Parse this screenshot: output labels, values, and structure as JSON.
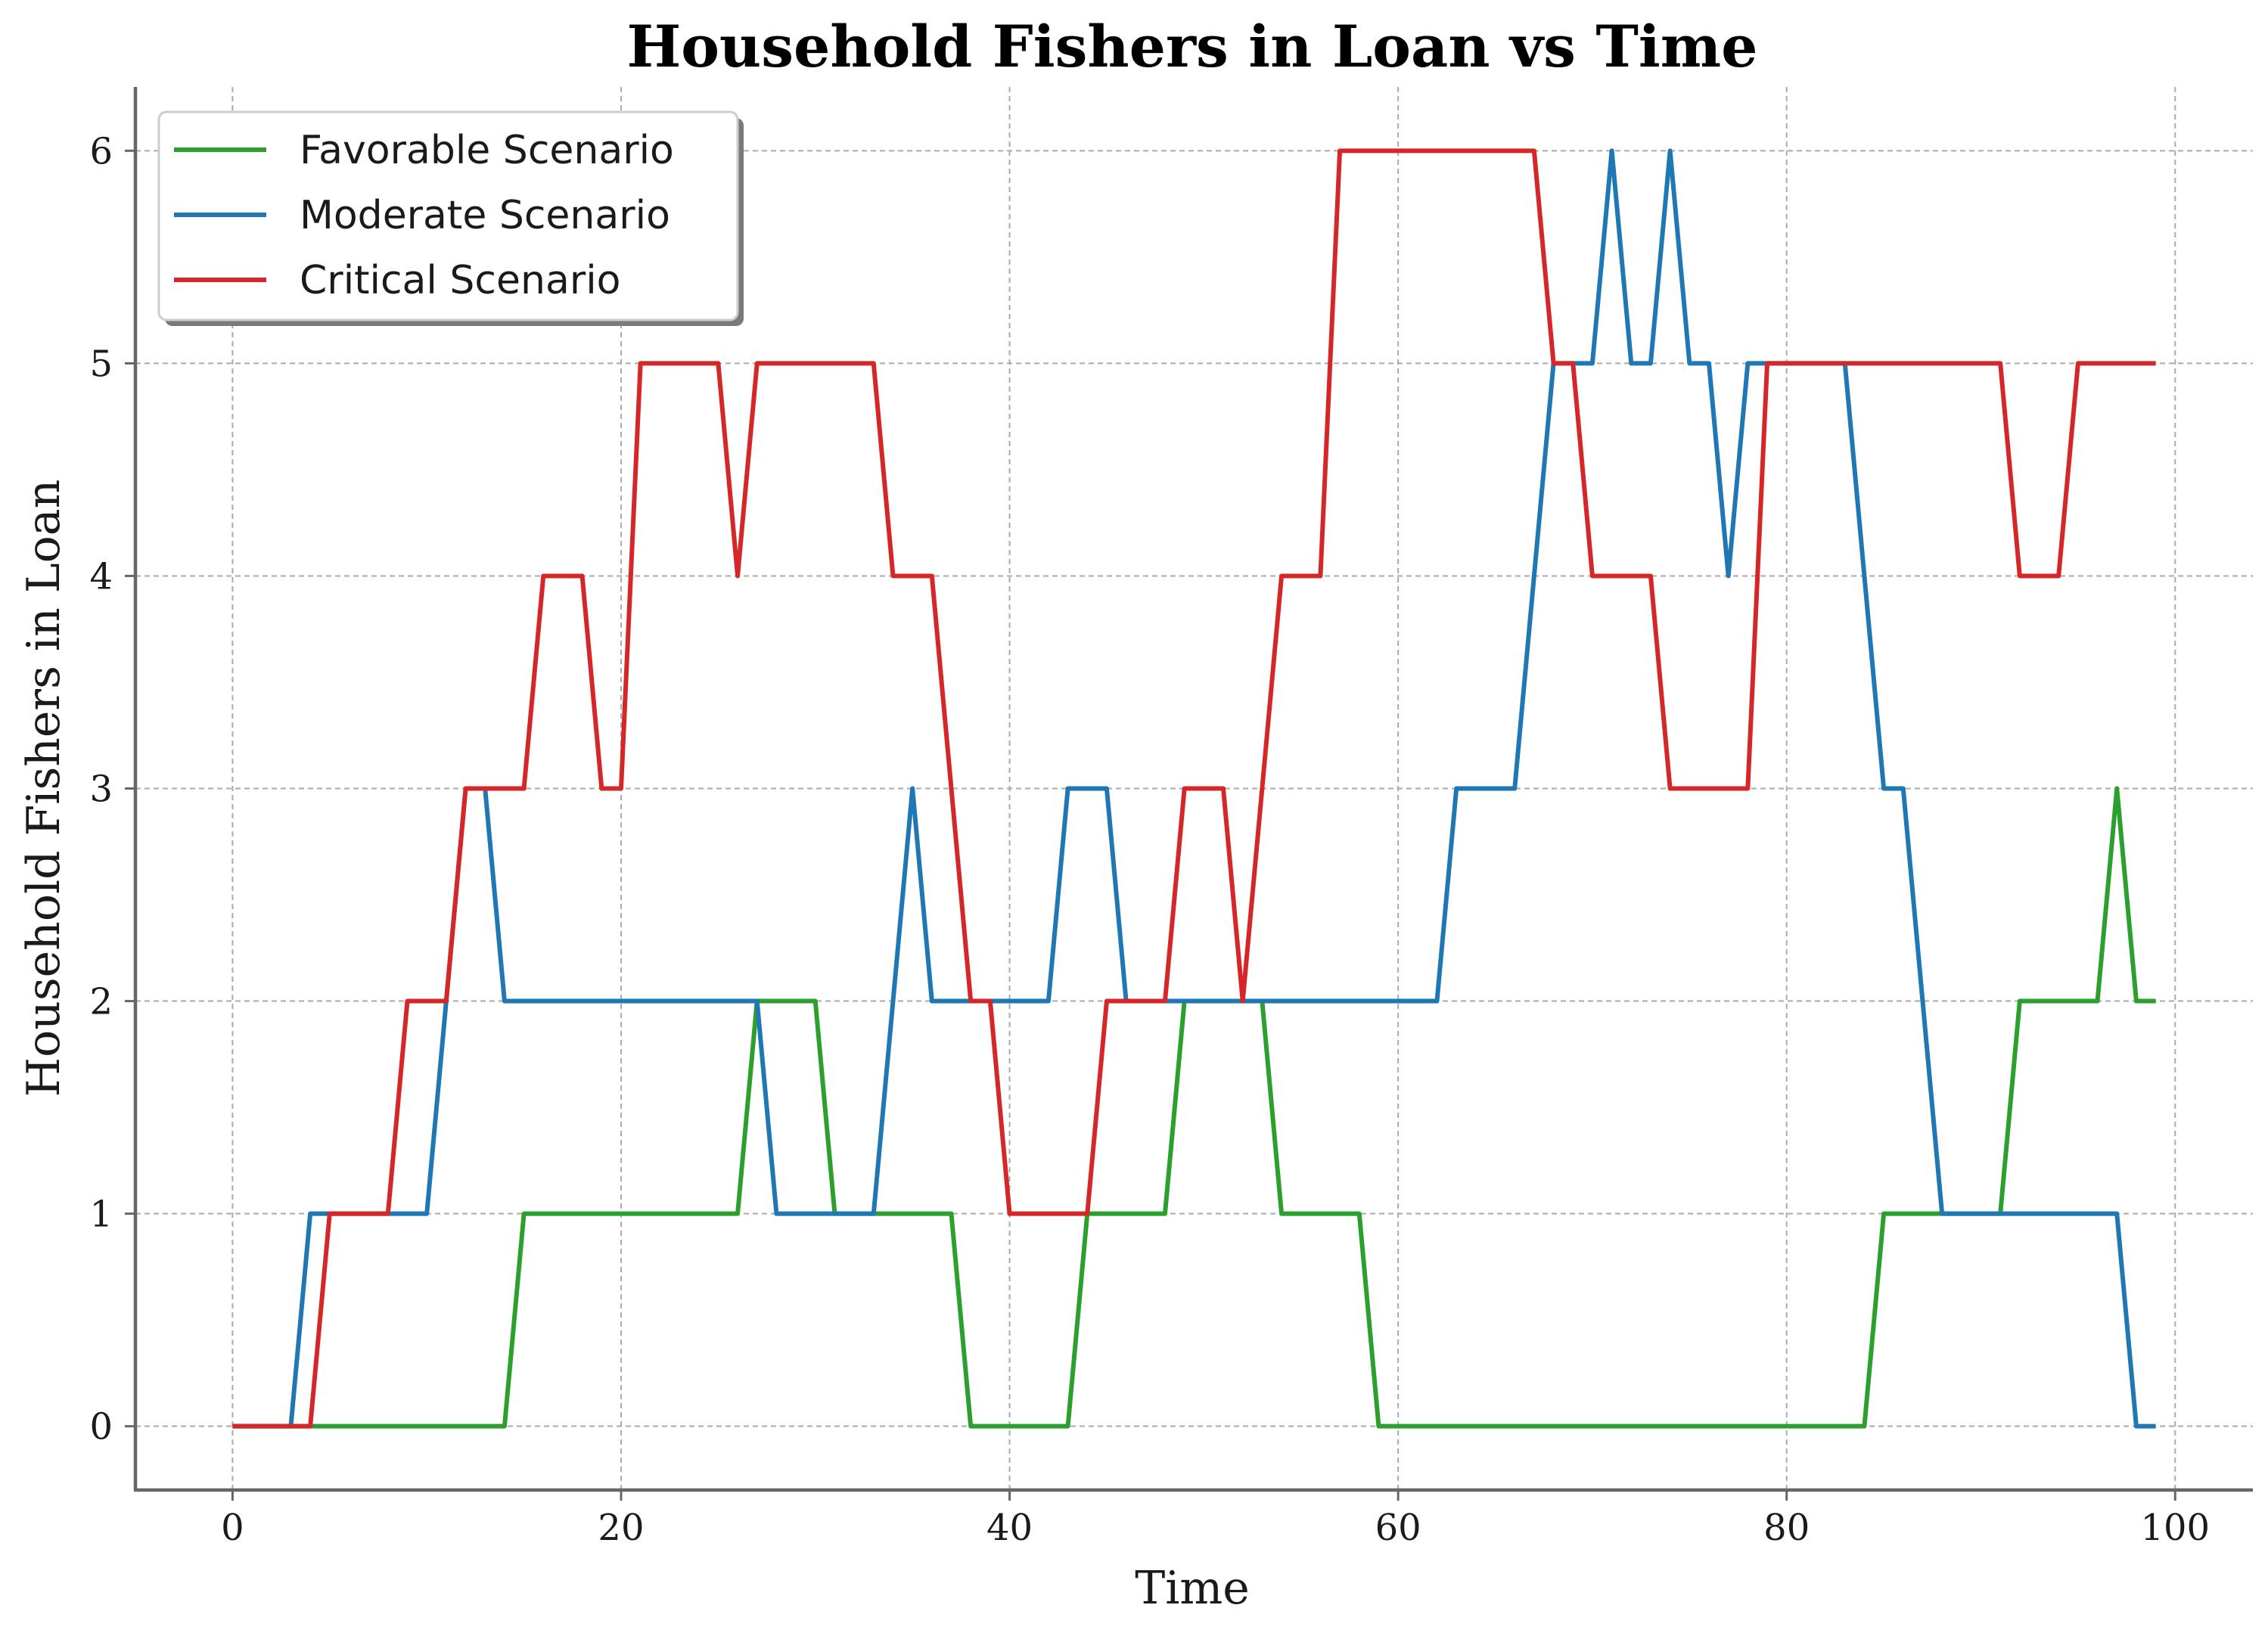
{
  "chart_data": {
    "type": "line",
    "title": "Household Fishers in Loan vs Time",
    "xlabel": "Time",
    "ylabel": "Household Fishers in Loan",
    "xlim": [
      -5,
      104
    ],
    "ylim": [
      -0.3,
      6.3
    ],
    "xticks": [
      0,
      20,
      40,
      60,
      80,
      100
    ],
    "yticks": [
      0,
      1,
      2,
      3,
      4,
      5,
      6
    ],
    "grid": true,
    "legend_position": "top-left",
    "x": [
      0,
      1,
      2,
      3,
      4,
      5,
      6,
      7,
      8,
      9,
      10,
      11,
      12,
      13,
      14,
      15,
      16,
      17,
      18,
      19,
      20,
      21,
      22,
      23,
      24,
      25,
      26,
      27,
      28,
      29,
      30,
      31,
      32,
      33,
      34,
      35,
      36,
      37,
      38,
      39,
      40,
      41,
      42,
      43,
      44,
      45,
      46,
      47,
      48,
      49,
      50,
      51,
      52,
      53,
      54,
      55,
      56,
      57,
      58,
      59,
      60,
      61,
      62,
      63,
      64,
      65,
      66,
      67,
      68,
      69,
      70,
      71,
      72,
      73,
      74,
      75,
      76,
      77,
      78,
      79,
      80,
      81,
      82,
      83,
      84,
      85,
      86,
      87,
      88,
      89,
      90,
      91,
      92,
      93,
      94,
      95,
      96,
      97,
      98,
      99
    ],
    "series": [
      {
        "name": "Favorable Scenario",
        "color": "#2ca02c",
        "values": [
          0,
          0,
          0,
          0,
          0,
          0,
          0,
          0,
          0,
          0,
          0,
          0,
          0,
          0,
          0,
          1,
          1,
          1,
          1,
          1,
          1,
          1,
          1,
          1,
          1,
          1,
          1,
          2,
          2,
          2,
          2,
          1,
          1,
          1,
          1,
          1,
          1,
          1,
          0,
          0,
          0,
          0,
          0,
          0,
          1,
          1,
          1,
          1,
          1,
          2,
          2,
          2,
          2,
          2,
          1,
          1,
          1,
          1,
          1,
          0,
          0,
          0,
          0,
          0,
          0,
          0,
          0,
          0,
          0,
          0,
          0,
          0,
          0,
          0,
          0,
          0,
          0,
          0,
          0,
          0,
          0,
          0,
          0,
          0,
          0,
          1,
          1,
          1,
          1,
          1,
          1,
          1,
          2,
          2,
          2,
          2,
          2,
          3,
          2,
          2
        ]
      },
      {
        "name": "Moderate Scenario",
        "color": "#1f77b4",
        "values": [
          0,
          0,
          0,
          0,
          1,
          1,
          1,
          1,
          1,
          1,
          1,
          2,
          3,
          3,
          2,
          2,
          2,
          2,
          2,
          2,
          2,
          2,
          2,
          2,
          2,
          2,
          2,
          2,
          1,
          1,
          1,
          1,
          1,
          1,
          2,
          3,
          2,
          2,
          2,
          2,
          2,
          2,
          2,
          3,
          3,
          3,
          2,
          2,
          2,
          2,
          2,
          2,
          2,
          2,
          2,
          2,
          2,
          2,
          2,
          2,
          2,
          2,
          2,
          3,
          3,
          3,
          3,
          4,
          5,
          5,
          5,
          6,
          5,
          5,
          6,
          5,
          5,
          4,
          5,
          5,
          5,
          5,
          5,
          5,
          4,
          3,
          3,
          2,
          1,
          1,
          1,
          1,
          1,
          1,
          1,
          1,
          1,
          1,
          0,
          0
        ]
      },
      {
        "name": "Critical Scenario",
        "color": "#d62728",
        "values": [
          0,
          0,
          0,
          0,
          0,
          1,
          1,
          1,
          1,
          2,
          2,
          2,
          3,
          3,
          3,
          3,
          4,
          4,
          4,
          3,
          3,
          5,
          5,
          5,
          5,
          5,
          4,
          5,
          5,
          5,
          5,
          5,
          5,
          5,
          4,
          4,
          4,
          3,
          2,
          2,
          1,
          1,
          1,
          1,
          1,
          2,
          2,
          2,
          2,
          3,
          3,
          3,
          2,
          3,
          4,
          4,
          4,
          6,
          6,
          6,
          6,
          6,
          6,
          6,
          6,
          6,
          6,
          6,
          5,
          5,
          4,
          4,
          4,
          4,
          3,
          3,
          3,
          3,
          3,
          5,
          5,
          5,
          5,
          5,
          5,
          5,
          5,
          5,
          5,
          5,
          5,
          5,
          4,
          4,
          4,
          5,
          5,
          5,
          5,
          5
        ]
      }
    ]
  }
}
